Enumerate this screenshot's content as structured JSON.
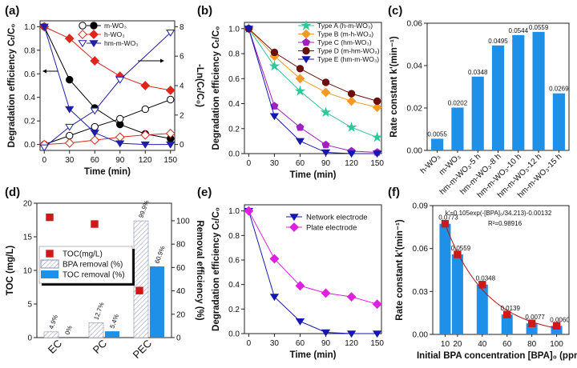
{
  "chart_data": [
    {
      "panel": "(a)",
      "type": "line",
      "xlabel": "Time (min)",
      "ylabel": "Degradation efficiency Cₜ/C₀",
      "y2label": "-Ln(Cₜ/C₀)",
      "xlim": [
        -5,
        155
      ],
      "ylim": [
        -0.05,
        1.05
      ],
      "y2lim": [
        -0.4,
        8.4
      ],
      "xticks": [
        0,
        30,
        60,
        90,
        120,
        150
      ],
      "yticks": [
        0,
        0.2,
        0.4,
        0.6,
        0.8,
        1.0
      ],
      "y2ticks": [
        0,
        2,
        4,
        6,
        8
      ],
      "x": [
        0,
        30,
        60,
        90,
        120,
        150
      ],
      "series": [
        {
          "name": "m-WO₃",
          "color": "#000000",
          "marker": "circle",
          "left": [
            1.0,
            0.55,
            0.31,
            0.17,
            0.09,
            0.05
          ],
          "right": [
            0,
            0.6,
            1.2,
            1.75,
            2.4,
            3.05
          ]
        },
        {
          "name": "h-WO₃",
          "color": "#e0261c",
          "marker": "diamond",
          "left": [
            1.0,
            0.9,
            0.71,
            0.58,
            0.5,
            0.46
          ],
          "right": [
            0,
            0.1,
            0.3,
            0.5,
            0.65,
            0.75
          ]
        },
        {
          "name": "hm-m-WO₃",
          "color": "#1f1fa8",
          "marker": "tri",
          "left": [
            1.0,
            0.3,
            0.1,
            0.01,
            0.0,
            0.0
          ],
          "right": [
            -0.2,
            1.2,
            2.3,
            4.4,
            null,
            7.6
          ]
        }
      ]
    },
    {
      "panel": "(b)",
      "type": "line",
      "xlabel": "Time (min)",
      "ylabel": "Degradation efficiency Cₜ/C₀",
      "xlim": [
        -5,
        155
      ],
      "ylim": [
        0,
        1.05
      ],
      "xticks": [
        0,
        30,
        60,
        90,
        120,
        150
      ],
      "yticks": [
        0,
        0.2,
        0.4,
        0.6,
        0.8,
        1.0
      ],
      "x": [
        0,
        30,
        60,
        90,
        120,
        150
      ],
      "series": [
        {
          "name": "Type A (h-m-WO₃)",
          "color": "#2fc79a",
          "marker": "star",
          "values": [
            1.0,
            0.7,
            0.5,
            0.33,
            0.21,
            0.13
          ]
        },
        {
          "name": "Type B (m-h-WO₃)",
          "color": "#f59a23",
          "marker": "diamond",
          "values": [
            1.0,
            0.78,
            0.6,
            0.49,
            0.42,
            0.37
          ]
        },
        {
          "name": "Type C (hm-WO₃)",
          "color": "#a020c0",
          "marker": "pent",
          "values": [
            1.0,
            0.38,
            0.21,
            0.07,
            0.02,
            0.01
          ]
        },
        {
          "name": "Type D (m-hm-WO₃)",
          "color": "#6b0f0f",
          "marker": "circle",
          "values": [
            1.0,
            0.81,
            0.68,
            0.57,
            0.48,
            0.42
          ]
        },
        {
          "name": "Type E (hm-m-WO₃)",
          "color": "#1616b0",
          "marker": "tri",
          "values": [
            1.0,
            0.3,
            0.1,
            0.01,
            0.0,
            0.0
          ]
        }
      ]
    },
    {
      "panel": "(c)",
      "type": "bar",
      "ylabel": "Rate constant k'(min⁻¹)",
      "ylim": [
        0,
        0.06
      ],
      "yticks": [
        0,
        0.02,
        0.04,
        0.06
      ],
      "color": "#1e90e8",
      "categories": [
        "h-WO₃",
        "m-WO₃",
        "hm-m-WO₃-5 h",
        "hm-m-WO₃-8 h",
        "hm-m-WO₃-10 h",
        "hm-m-WO₃-12 h",
        "hm-m-WO₃-15 h"
      ],
      "values": [
        0.0055,
        0.0202,
        0.0348,
        0.0495,
        0.0544,
        0.0559,
        0.0269
      ],
      "labels": [
        "0.0055",
        "0.0202",
        "0.0348",
        "0.0495",
        "0.0544",
        "0.0559",
        "0.0269"
      ]
    },
    {
      "panel": "(d)",
      "type": "bar",
      "ylabel": "TOC (mg/L)",
      "y2label": "Removal efficiency (%)",
      "ylim": [
        0,
        20
      ],
      "yticks": [
        0,
        5,
        10,
        15,
        20
      ],
      "y2lim": [
        0,
        115
      ],
      "y2ticks": [
        0,
        20,
        40,
        60,
        80,
        100
      ],
      "categories": [
        "EC",
        "PC",
        "PEC"
      ],
      "series": [
        {
          "name": "TOC(mg/L)",
          "color": "#d01818",
          "values": [
            17.9,
            16.9,
            7.0
          ]
        },
        {
          "name": "BPA removal (%)",
          "color": "#c8cce0",
          "values": [
            4.9,
            12.7,
            99.9
          ],
          "labels": [
            "4.9%",
            "12.7%",
            "99.9%"
          ]
        },
        {
          "name": "TOC removal (%)",
          "color": "#1e90e8",
          "values": [
            0,
            5.4,
            60.9
          ],
          "labels": [
            "0%",
            "5.4%",
            "60.9%"
          ]
        }
      ]
    },
    {
      "panel": "(e)",
      "type": "line",
      "xlabel": "Time (min)",
      "ylabel": "Degradation efficiency Cₜ/C₀",
      "xlim": [
        -5,
        155
      ],
      "ylim": [
        0,
        1.05
      ],
      "xticks": [
        0,
        30,
        60,
        90,
        120,
        150
      ],
      "yticks": [
        0,
        0.2,
        0.4,
        0.6,
        0.8,
        1.0
      ],
      "x": [
        0,
        30,
        60,
        90,
        120,
        150
      ],
      "series": [
        {
          "name": "Network electrode",
          "color": "#1616b0",
          "marker": "tri",
          "values": [
            1.0,
            0.3,
            0.1,
            0.01,
            0.0,
            0.0
          ]
        },
        {
          "name": "Plate electrode",
          "color": "#e020e0",
          "marker": "diamond",
          "values": [
            1.0,
            0.61,
            0.39,
            0.33,
            0.3,
            0.24
          ]
        }
      ]
    },
    {
      "panel": "(f)",
      "type": "bar",
      "xlabel": "Initial BPA concentration [BPA]₀ (ppm)",
      "ylabel": "Rate constant k'(min⁻¹)",
      "xlim": [
        0,
        110
      ],
      "ylim": [
        0,
        0.09
      ],
      "yticks": [
        0,
        0.03,
        0.06,
        0.09
      ],
      "x": [
        10,
        20,
        40,
        60,
        80,
        100
      ],
      "values": [
        0.0773,
        0.0559,
        0.0348,
        0.0139,
        0.0077,
        0.006
      ],
      "labels": [
        "0.0773",
        "0.0559",
        "0.0348",
        "0.0139",
        "0.0077",
        "0.0060"
      ],
      "color": "#1e90e8",
      "fit_color": "#b01818",
      "equation": "k'=0.105exp(-[BPA]₀/34.213)-0.00132",
      "r2": "R²=0.98916"
    }
  ]
}
